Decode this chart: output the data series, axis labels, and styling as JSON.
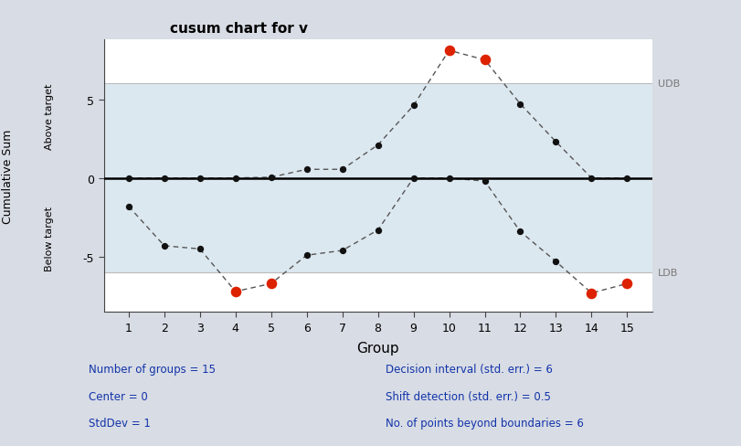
{
  "title": "cusum chart for v",
  "xlabel": "Group",
  "ylabel_top": "Above target",
  "ylabel_bottom": "Below target",
  "ylabel_main": "Cumulative Sum",
  "groups": [
    1,
    2,
    3,
    4,
    5,
    6,
    7,
    8,
    9,
    10,
    11,
    12,
    13,
    14,
    15
  ],
  "cusum_above": [
    0,
    0,
    0,
    0,
    0.05,
    0.55,
    0.55,
    2.1,
    4.6,
    8.1,
    7.5,
    4.7,
    2.3,
    0,
    0
  ],
  "cusum_below": [
    -1.8,
    -4.3,
    -4.5,
    -7.2,
    -6.7,
    -4.9,
    -4.6,
    -3.3,
    0,
    0,
    -0.2,
    -3.4,
    -5.3,
    -7.3,
    -6.7
  ],
  "UDB": 6,
  "LDB": -6,
  "above_boundary_indices": [
    9,
    10
  ],
  "below_boundary_indices": [
    3,
    4,
    13,
    14
  ],
  "dot_color_normal": "#111111",
  "dot_color_outlier": "#dd2200",
  "line_color": "#555555",
  "background_inner_color": "#dce8f0",
  "background_outer_color": "#d8dce4",
  "ylim": [
    -8.5,
    8.8
  ],
  "yticks": [
    -5,
    0,
    5
  ],
  "figsize": [
    8.11,
    4.89
  ],
  "dpi": 100,
  "annotations": [
    "Number of groups = 15",
    "Center = 0",
    "StdDev = 1",
    "Decision interval (std. err.) = 6",
    "Shift detection (std. err.) = 0.5",
    "No. of points beyond boundaries = 6"
  ]
}
